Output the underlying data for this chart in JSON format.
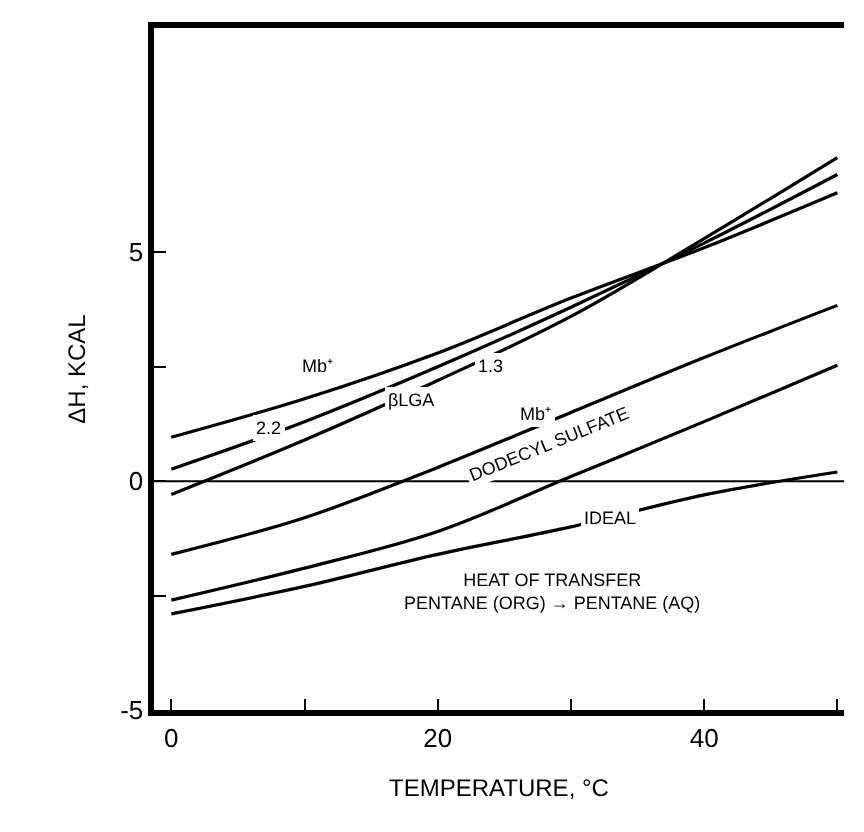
{
  "chart_data": {
    "type": "line",
    "xlabel": "TEMPERATURE, °C",
    "ylabel": "ΔH, KCAL",
    "x": [
      0,
      10,
      20,
      30,
      40,
      50
    ],
    "series": [
      {
        "color": "#000000",
        "values": [
          0.96,
          1.8,
          2.8,
          4.0,
          5.1,
          6.3
        ]
      },
      {
        "color": "#000000",
        "values": [
          0.26,
          1.3,
          2.5,
          3.8,
          5.2,
          6.7
        ]
      },
      {
        "color": "#000000",
        "values": [
          -0.29,
          0.9,
          2.2,
          3.6,
          5.3,
          7.07
        ]
      },
      {
        "color": "#000000",
        "values": [
          -1.6,
          -0.8,
          0.3,
          1.5,
          2.7,
          3.84
        ]
      },
      {
        "color": "#000000",
        "values": [
          -2.6,
          -1.9,
          -1.1,
          0.1,
          1.3,
          2.53
        ]
      },
      {
        "color": "#000000",
        "values": [
          -2.9,
          -2.3,
          -1.6,
          -1.0,
          -0.3,
          0.2
        ]
      }
    ],
    "xlim": [
      -1.3,
      50.5
    ],
    "ylim": [
      -5,
      9.9
    ],
    "xticks": [
      0,
      {
        "value": 10,
        "label": null
      },
      20,
      {
        "value": 30,
        "label": null
      },
      40,
      {
        "value": 50,
        "label": null
      }
    ],
    "yticks": [
      -5,
      {
        "value": -2.5,
        "label": null
      },
      0,
      {
        "value": 2.5,
        "label": null
      },
      5
    ],
    "ref_lines": [
      {
        "axis": "y",
        "value": 0,
        "label": null,
        "color": "#000000"
      }
    ],
    "annotations": [
      "Mb⁺",
      "2.2",
      "βLGA",
      "1.3",
      "Mb⁺",
      "DODECYL SULFATE",
      "IDEAL",
      "HEAT OF TRANSFER\nPENTANE (ORG) → PENTANE (AQ)"
    ],
    "marker": "none",
    "line_style": "solid"
  }
}
